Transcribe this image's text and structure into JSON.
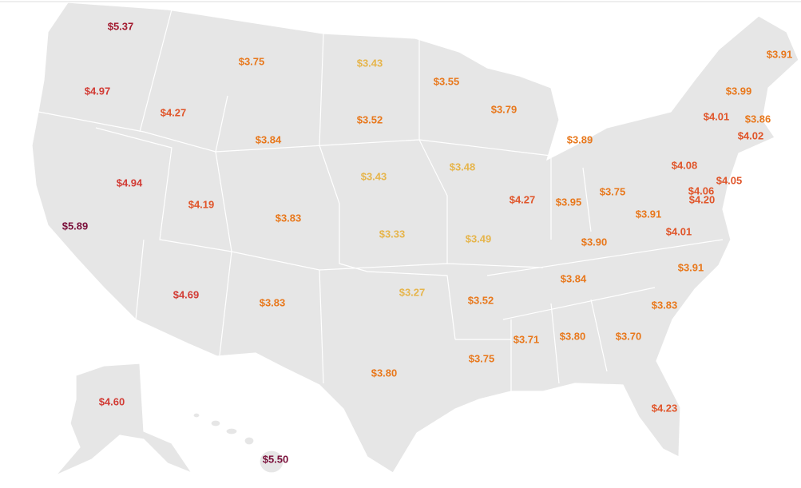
{
  "labels": [
    {
      "text": "$5.37",
      "color": "#a3192e"
    },
    {
      "text": "$4.97",
      "color": "#d23c35"
    },
    {
      "text": "$4.27",
      "color": "#e0552a"
    },
    {
      "text": "$3.75",
      "color": "#e8781c"
    },
    {
      "text": "$3.43",
      "color": "#e6b54c"
    },
    {
      "text": "$3.55",
      "color": "#e8781c"
    },
    {
      "text": "$3.79",
      "color": "#e8781c"
    },
    {
      "text": "$3.91",
      "color": "#e8781c"
    },
    {
      "text": "$3.99",
      "color": "#e8781c"
    },
    {
      "text": "$4.01",
      "color": "#e0552a"
    },
    {
      "text": "$3.86",
      "color": "#e8781c"
    },
    {
      "text": "$4.02",
      "color": "#e0552a"
    },
    {
      "text": "$3.52",
      "color": "#e8781c"
    },
    {
      "text": "$3.84",
      "color": "#e8781c"
    },
    {
      "text": "$3.89",
      "color": "#e8781c"
    },
    {
      "text": "$4.94",
      "color": "#d23c35"
    },
    {
      "text": "$4.19",
      "color": "#e0552a"
    },
    {
      "text": "$3.43",
      "color": "#e6b54c"
    },
    {
      "text": "$3.48",
      "color": "#e6b54c"
    },
    {
      "text": "$4.08",
      "color": "#e0552a"
    },
    {
      "text": "$4.05",
      "color": "#e0552a"
    },
    {
      "text": "$4.06",
      "color": "#e0552a"
    },
    {
      "text": "$4.20",
      "color": "#e0552a"
    },
    {
      "text": "$4.27",
      "color": "#e0552a"
    },
    {
      "text": "$3.95",
      "color": "#e8781c"
    },
    {
      "text": "$3.75",
      "color": "#e8781c"
    },
    {
      "text": "$3.91",
      "color": "#e8781c"
    },
    {
      "text": "$5.89",
      "color": "#7a0f3a"
    },
    {
      "text": "$3.83",
      "color": "#e8781c"
    },
    {
      "text": "$3.33",
      "color": "#e6b54c"
    },
    {
      "text": "$3.49",
      "color": "#e6b54c"
    },
    {
      "text": "$4.01",
      "color": "#e0552a"
    },
    {
      "text": "$3.90",
      "color": "#e8781c"
    },
    {
      "text": "$3.91",
      "color": "#e8781c"
    },
    {
      "text": "$4.69",
      "color": "#d23c35"
    },
    {
      "text": "$3.83",
      "color": "#e8781c"
    },
    {
      "text": "$3.27",
      "color": "#e6b54c"
    },
    {
      "text": "$3.52",
      "color": "#e8781c"
    },
    {
      "text": "$3.84",
      "color": "#e8781c"
    },
    {
      "text": "$3.83",
      "color": "#e8781c"
    },
    {
      "text": "$3.71",
      "color": "#e8781c"
    },
    {
      "text": "$3.80",
      "color": "#e8781c"
    },
    {
      "text": "$3.70",
      "color": "#e8781c"
    },
    {
      "text": "$3.75",
      "color": "#e8781c"
    },
    {
      "text": "$3.80",
      "color": "#e8781c"
    },
    {
      "text": "$4.60",
      "color": "#d23c35"
    },
    {
      "text": "$4.23",
      "color": "#e0552a"
    },
    {
      "text": "$5.50",
      "color": "#7a0f3a"
    }
  ]
}
